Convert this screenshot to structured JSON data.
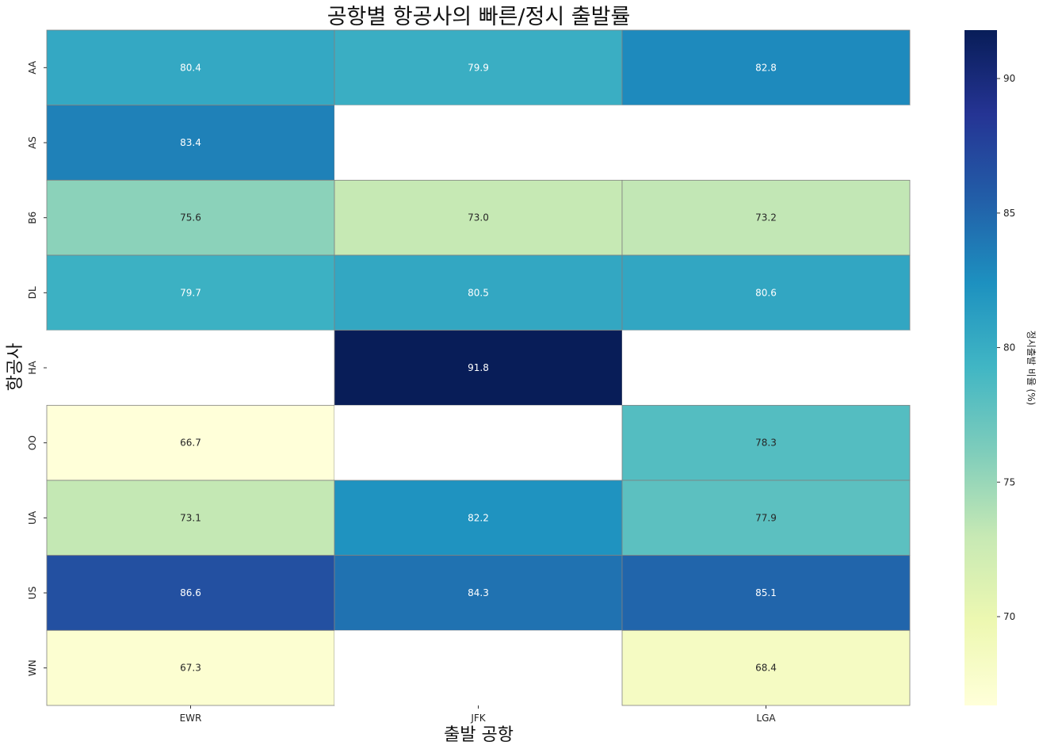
{
  "chart_data": {
    "type": "heatmap",
    "title": "공항별 항공사의 빠른/정시 출발률",
    "xlabel": "출발 공항",
    "ylabel": "항공사",
    "x_categories": [
      "EWR",
      "JFK",
      "LGA"
    ],
    "y_categories": [
      "AA",
      "AS",
      "B6",
      "DL",
      "HA",
      "OO",
      "UA",
      "US",
      "WN"
    ],
    "values": [
      [
        80.4,
        79.9,
        82.8
      ],
      [
        83.4,
        null,
        null
      ],
      [
        75.6,
        73.0,
        73.2
      ],
      [
        79.7,
        80.5,
        80.6
      ],
      [
        null,
        91.8,
        null
      ],
      [
        66.7,
        null,
        78.3
      ],
      [
        73.1,
        82.2,
        77.9
      ],
      [
        86.6,
        84.3,
        85.1
      ],
      [
        67.3,
        null,
        68.4
      ]
    ],
    "annotation_format": "%.1f",
    "colormap": "YlGnBu",
    "colorbar": {
      "label": "정시출발 비율 (%)",
      "range": [
        66.7,
        91.8
      ],
      "ticks": [
        70,
        75,
        80,
        85,
        90
      ]
    },
    "grid_line_color": "#808080",
    "missing_color": "#ffffff"
  }
}
